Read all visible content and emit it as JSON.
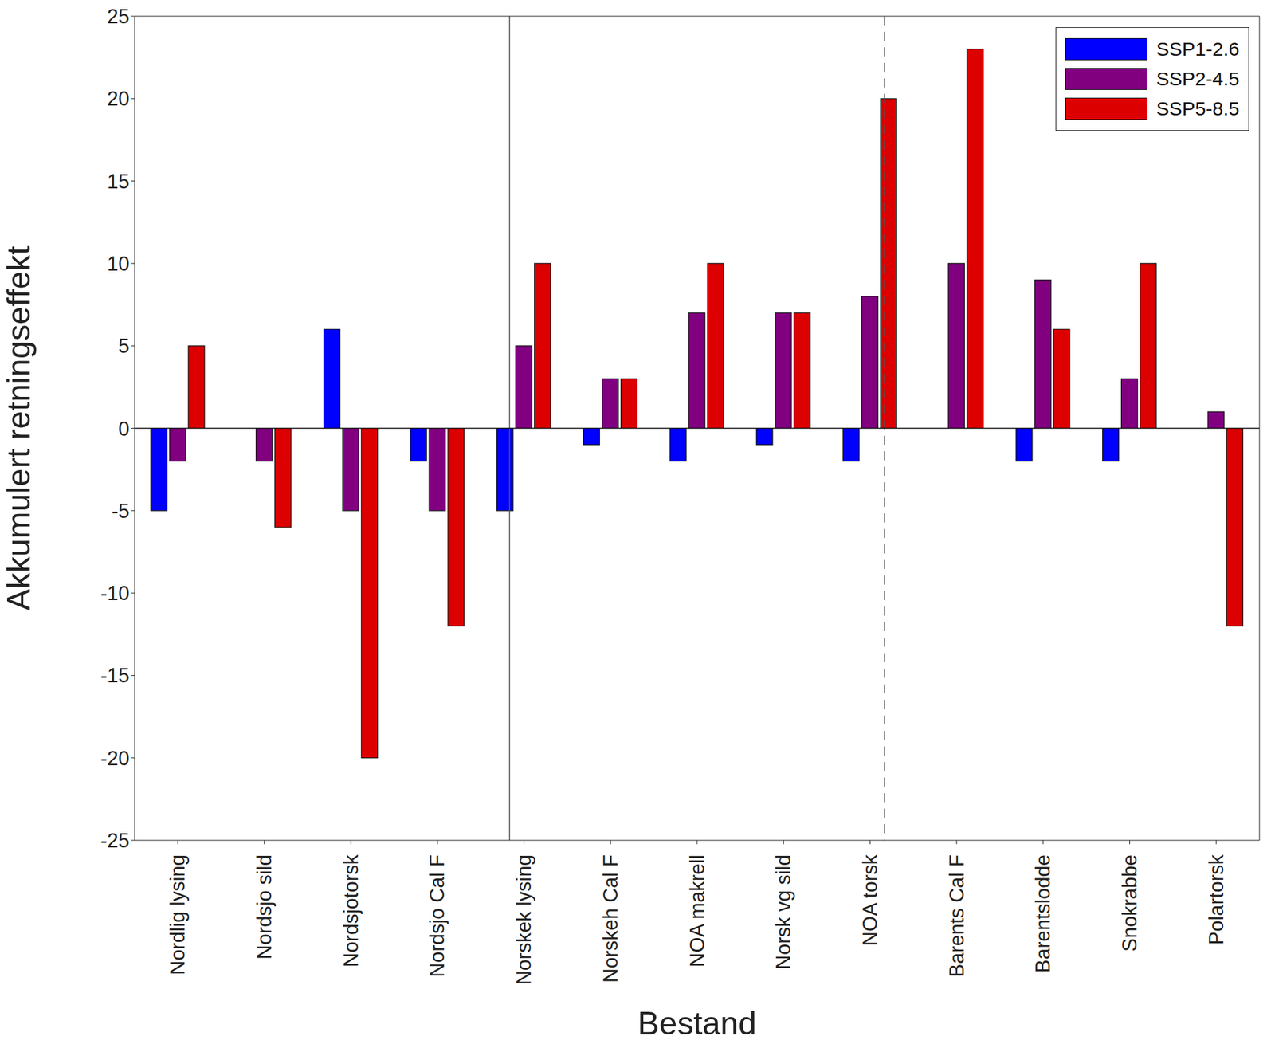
{
  "chart_data": {
    "type": "bar",
    "x_label": "Bestand",
    "y_label": "Akkumulert retningseffekt",
    "categories": [
      "Nordlig lysing",
      "Nordsjo sild",
      "Nordsjotorsk",
      "Nordsjo Cal F",
      "Norskek lysing",
      "Norskeh Cal F",
      "NOA makrell",
      "Norsk vg sild",
      "NOA torsk",
      "Barents Cal F",
      "Barentslodde",
      "Snokrabbe",
      "Polartorsk"
    ],
    "series": [
      {
        "name": "SSP1-2.6",
        "color": "#0000ff",
        "values": [
          -5,
          0,
          6,
          -2,
          -5,
          -1,
          -2,
          -1,
          -2,
          0,
          -2,
          -2,
          0
        ]
      },
      {
        "name": "SSP2-4.5",
        "color": "#800080",
        "values": [
          -2,
          -2,
          -5,
          -5,
          5,
          3,
          7,
          7,
          8,
          10,
          9,
          3,
          1
        ]
      },
      {
        "name": "SSP5-8.5",
        "color": "#dd0000",
        "values": [
          5,
          -6,
          -20,
          -12,
          10,
          3,
          10,
          7,
          20,
          23,
          6,
          10,
          -12
        ]
      }
    ],
    "ylim": [
      -25,
      25
    ],
    "yticks": [
      -25,
      -20,
      -15,
      -10,
      -5,
      0,
      5,
      10,
      15,
      20,
      25
    ],
    "grid": false,
    "legend": "upper right"
  }
}
